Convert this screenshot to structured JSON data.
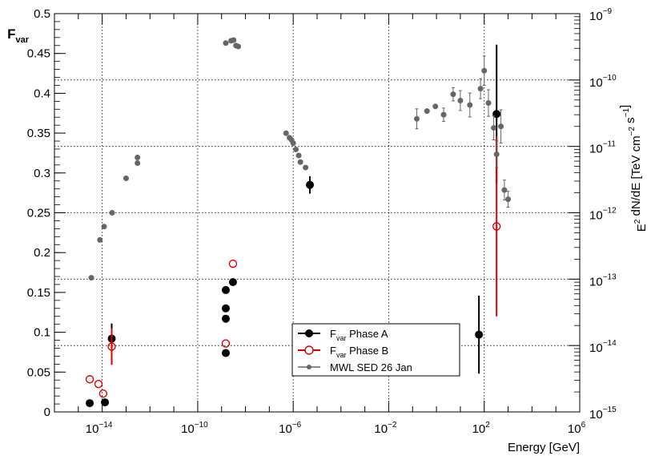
{
  "chart_data": {
    "type": "scatter",
    "xlabel": "Energy [GeV]",
    "x_scale": "log",
    "xlim": [
      1e-16,
      1000000.0
    ],
    "x_tick_labels": [
      {
        "base": "10",
        "exp": "−14"
      },
      {
        "base": "10",
        "exp": "−10"
      },
      {
        "base": "10",
        "exp": "−6"
      },
      {
        "base": "10",
        "exp": "−2"
      },
      {
        "base": "10",
        "exp": "2"
      },
      {
        "base": "10",
        "exp": "6"
      }
    ],
    "y_left": {
      "label_main": "F",
      "label_sub": "var",
      "lim": [
        0,
        0.5
      ],
      "tick_labels": [
        "0",
        "0.05",
        "0.1",
        "0.15",
        "0.2",
        "0.25",
        "0.3",
        "0.35",
        "0.4",
        "0.45",
        "0.5"
      ]
    },
    "y_right": {
      "scale": "log",
      "lim": [
        1e-15,
        1e-09
      ],
      "label_parts": [
        {
          "t": "E",
          "s": "n"
        },
        {
          "t": "2",
          "s": "sup"
        },
        {
          "t": " dN/dE [TeV cm",
          "s": "n"
        },
        {
          "t": "−2",
          "s": "sup"
        },
        {
          "t": " s",
          "s": "n"
        },
        {
          "t": "−1",
          "s": "sup"
        },
        {
          "t": "]",
          "s": "n"
        }
      ],
      "tick_labels": [
        {
          "base": "10",
          "exp": "−15"
        },
        {
          "base": "10",
          "exp": "−14"
        },
        {
          "base": "10",
          "exp": "−13"
        },
        {
          "base": "10",
          "exp": "−12"
        },
        {
          "base": "10",
          "exp": "−11"
        },
        {
          "base": "10",
          "exp": "−10"
        },
        {
          "base": "10",
          "exp": "−9"
        }
      ]
    },
    "grid": true,
    "legend_position": "bottom-center",
    "series": [
      {
        "name_main": "F",
        "name_sub": "var",
        "name_rest": " Phase A",
        "color": "#000000",
        "marker": "filled-circle-large",
        "axis": "left",
        "points": [
          {
            "x": 3e-15,
            "y": 0.011
          },
          {
            "x": 1.3e-14,
            "y": 0.012
          },
          {
            "x": 2.5e-14,
            "y": 0.092,
            "yerr": 0.019
          },
          {
            "x": 1.5e-09,
            "y": 0.074
          },
          {
            "x": 1.5e-09,
            "y": 0.117
          },
          {
            "x": 1.5e-09,
            "y": 0.13
          },
          {
            "x": 1.5e-09,
            "y": 0.153
          },
          {
            "x": 3e-09,
            "y": 0.163
          },
          {
            "x": 5e-06,
            "y": 0.285,
            "yerr": 0.011
          },
          {
            "x": 60,
            "y": 0.097,
            "yerr": 0.049
          },
          {
            "x": 330,
            "y": 0.374,
            "yerr": 0.087
          }
        ]
      },
      {
        "name_main": "F",
        "name_sub": "var",
        "name_rest": " Phase B",
        "color": "#dd0000",
        "marker": "open-circle-large",
        "axis": "left",
        "points": [
          {
            "x": 3e-15,
            "y": 0.041
          },
          {
            "x": 7e-15,
            "y": 0.035
          },
          {
            "x": 1.1e-14,
            "y": 0.023
          },
          {
            "x": 2.5e-14,
            "y": 0.082,
            "yerr": 0.023
          },
          {
            "x": 1.5e-09,
            "y": 0.086
          },
          {
            "x": 3e-09,
            "y": 0.186
          },
          {
            "x": 330,
            "y": 0.233,
            "yerr": 0.113
          }
        ]
      },
      {
        "name": "MWL SED 26 Jan",
        "color": "#666666",
        "marker": "filled-circle-small",
        "axis": "right",
        "points": [
          {
            "x": 3.5e-15,
            "y": 1.05e-13
          },
          {
            "x": 8e-15,
            "y": 3.9e-13
          },
          {
            "x": 1.2e-14,
            "y": 6.2e-13
          },
          {
            "x": 2.6e-14,
            "y": 1e-12
          },
          {
            "x": 1e-13,
            "y": 3.3e-12
          },
          {
            "x": 3e-13,
            "y": 5.6e-12
          },
          {
            "x": 3e-13,
            "y": 6.8e-12
          },
          {
            "x": 1.5e-09,
            "y": 3.6e-10
          },
          {
            "x": 2.5e-09,
            "y": 3.9e-10
          },
          {
            "x": 3.2e-09,
            "y": 4e-10
          },
          {
            "x": 4e-09,
            "y": 3.3e-10
          },
          {
            "x": 5e-09,
            "y": 3.2e-10
          },
          {
            "x": 5e-07,
            "y": 1.58e-11
          },
          {
            "x": 7e-07,
            "y": 1.35e-11
          },
          {
            "x": 8.5e-07,
            "y": 1.25e-11
          },
          {
            "x": 1e-06,
            "y": 1.12e-11
          },
          {
            "x": 1.3e-06,
            "y": 9e-12
          },
          {
            "x": 1.7e-06,
            "y": 7.3e-12
          },
          {
            "x": 2e-06,
            "y": 5.8e-12
          },
          {
            "x": 3.3e-06,
            "y": 4.8e-12
          },
          {
            "x": 0.15,
            "y": 2.6e-11,
            "yerr": 0.15
          },
          {
            "x": 0.4,
            "y": 3.4e-11
          },
          {
            "x": 0.9,
            "y": 4e-11
          },
          {
            "x": 2.0,
            "y": 3e-11,
            "yerr": 0.1
          },
          {
            "x": 5.0,
            "y": 6.1e-11,
            "yerr": 0.1
          },
          {
            "x": 10,
            "y": 4.9e-11,
            "yerr": 0.15
          },
          {
            "x": 25,
            "y": 4.2e-11,
            "yerr": 0.18
          },
          {
            "x": 70,
            "y": 7.4e-11,
            "yerr": 0.15
          },
          {
            "x": 100,
            "y": 1.38e-10,
            "yerr": 0.22
          },
          {
            "x": 150,
            "y": 4.5e-11,
            "yerr": 0.2
          },
          {
            "x": 250,
            "y": 1.9e-11,
            "yerr": 0.18
          },
          {
            "x": 330,
            "y": 7.6e-12,
            "yerr": 0.2
          },
          {
            "x": 500,
            "y": 2e-11,
            "yerr": 0.25
          },
          {
            "x": 700,
            "y": 2.2e-12,
            "yerr": 0.15
          },
          {
            "x": 1000,
            "y": 1.6e-12,
            "yerr": 0.12
          }
        ]
      }
    ]
  }
}
